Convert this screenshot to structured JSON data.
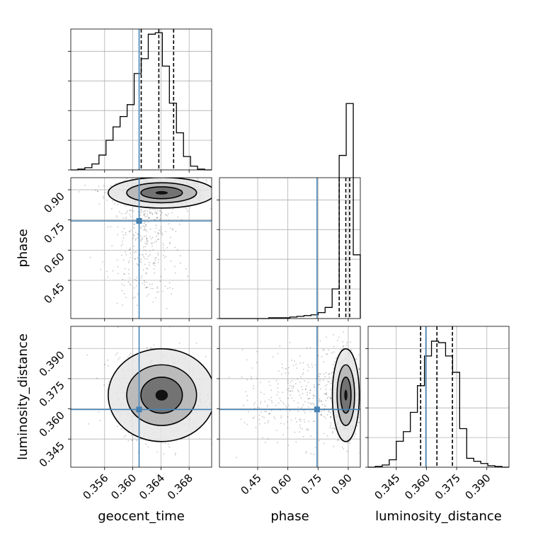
{
  "chart_data": {
    "type": "corner",
    "parameters": [
      {
        "name": "geocent_time",
        "xlabel": "geocent_time",
        "ylabel": "",
        "range": [
          0.3512,
          0.3712
        ],
        "ticks": [
          0.356,
          0.36,
          0.364,
          0.368
        ],
        "tick_labels": [
          "0.356",
          "0.360",
          "0.364",
          "0.368"
        ],
        "truth": 0.3609,
        "quantiles": [
          0.3612,
          0.3637,
          0.3658
        ],
        "hist_edges": [
          0.3512,
          0.3522,
          0.3532,
          0.3542,
          0.3552,
          0.3562,
          0.3572,
          0.3582,
          0.3592,
          0.3602,
          0.3612,
          0.3622,
          0.3632,
          0.3642,
          0.3652,
          0.3662,
          0.3672,
          0.3682,
          0.3692,
          0.3702,
          0.3712
        ],
        "hist_counts": [
          0,
          1,
          3,
          8,
          20,
          40,
          58,
          72,
          88,
          130,
          150,
          183,
          185,
          140,
          90,
          50,
          18,
          5,
          1,
          0
        ]
      },
      {
        "name": "phase",
        "xlabel": "phase",
        "ylabel": "phase",
        "range": [
          0.26,
          0.96
        ],
        "ticks": [
          0.45,
          0.6,
          0.75,
          0.9
        ],
        "tick_labels": [
          "0.45",
          "0.60",
          "0.75",
          "0.90"
        ],
        "truth": 0.745,
        "quantiles": [
          0.855,
          0.888,
          0.907
        ],
        "hist_edges": [
          0.26,
          0.295,
          0.33,
          0.365,
          0.4,
          0.435,
          0.47,
          0.505,
          0.54,
          0.575,
          0.61,
          0.645,
          0.68,
          0.715,
          0.75,
          0.785,
          0.82,
          0.855,
          0.89,
          0.925,
          0.96
        ],
        "hist_counts": [
          0,
          0,
          0,
          0,
          0,
          0,
          0,
          1,
          1,
          1,
          2,
          3,
          4,
          5,
          8,
          15,
          40,
          220,
          290,
          86
        ]
      },
      {
        "name": "luminosity_distance",
        "xlabel": "luminosity_distance",
        "ylabel": "luminosity_distance",
        "range": [
          0.331,
          0.401
        ],
        "ticks": [
          0.345,
          0.36,
          0.375,
          0.39
        ],
        "tick_labels": [
          "0.345",
          "0.360",
          "0.375",
          "0.390"
        ],
        "truth": 0.3597,
        "quantiles": [
          0.3571,
          0.3652,
          0.3729
        ],
        "hist_edges": [
          0.331,
          0.3345,
          0.338,
          0.3415,
          0.345,
          0.3485,
          0.352,
          0.3555,
          0.359,
          0.3625,
          0.366,
          0.3695,
          0.373,
          0.3765,
          0.38,
          0.3835,
          0.387,
          0.3905,
          0.394,
          0.3975,
          0.401
        ],
        "hist_counts": [
          0,
          1,
          3,
          10,
          35,
          48,
          74,
          110,
          150,
          170,
          168,
          150,
          128,
          52,
          12,
          8,
          5,
          2,
          1,
          0
        ]
      }
    ],
    "hist_ylim": [
      0,
      190
    ],
    "hist_ytick_step": 40,
    "pairs": [
      {
        "x": "geocent_time",
        "y": "phase",
        "center": [
          0.3641,
          0.885
        ],
        "spread": [
          0.0025,
          0.025
        ],
        "tail": {
          "x_center": 0.3615,
          "x_spread": 0.0025,
          "y_from": 0.3,
          "y_to": 0.8
        }
      },
      {
        "x": "geocent_time",
        "y": "luminosity_distance",
        "center": [
          0.3641,
          0.3668
        ],
        "spread": [
          0.0025,
          0.0076
        ]
      },
      {
        "x": "phase",
        "y": "luminosity_distance",
        "center": [
          0.888,
          0.3668
        ],
        "spread": [
          0.022,
          0.0076
        ],
        "tail": {
          "x_from": 0.3,
          "x_to": 0.84,
          "y_center": 0.3668,
          "y_spread": 0.012
        }
      }
    ],
    "contour_levels": [
      0.5,
      0.86,
      0.99
    ],
    "truth_color": "#4682b4",
    "hist_color": "#000000",
    "quantile_style": "dashed",
    "grid": true
  }
}
